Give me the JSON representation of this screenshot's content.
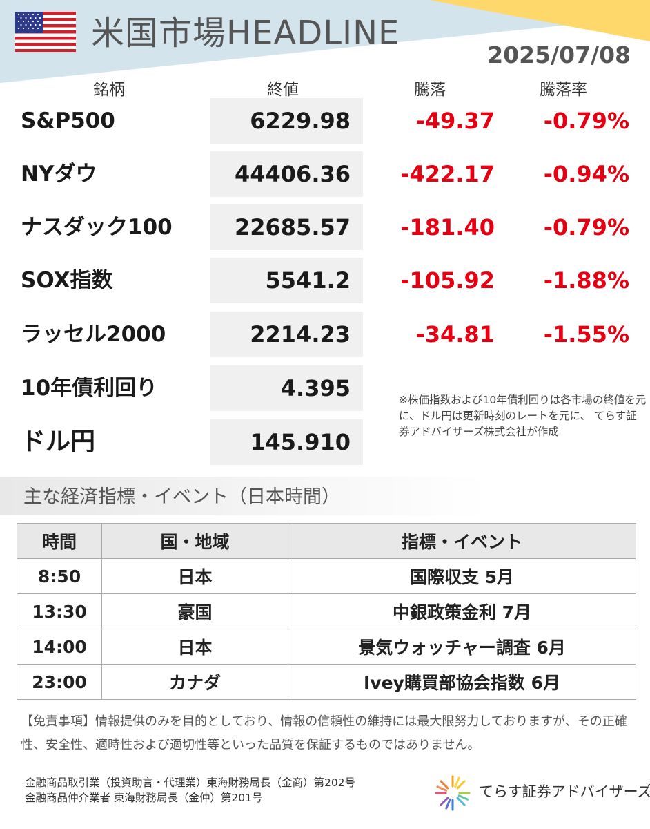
{
  "header": {
    "title": "米国市場HEADLINE",
    "date": "2025/07/08"
  },
  "market": {
    "columns": [
      "銘柄",
      "終値",
      "騰落",
      "騰落率"
    ],
    "rows": [
      {
        "name": "S&P500",
        "close": "6229.98",
        "change": "-49.37",
        "pct": "-0.79%"
      },
      {
        "name": "NYダウ",
        "close": "44406.36",
        "change": "-422.17",
        "pct": "-0.94%"
      },
      {
        "name": "ナスダック100",
        "close": "22685.57",
        "change": "-181.40",
        "pct": "-0.79%"
      },
      {
        "name": "SOX指数",
        "close": "5541.2",
        "change": "-105.92",
        "pct": "-1.88%"
      },
      {
        "name": "ラッセル2000",
        "close": "2214.23",
        "change": "-34.81",
        "pct": "-1.55%"
      },
      {
        "name": "10年債利回り",
        "close": "4.395"
      },
      {
        "name": "ドル円",
        "close": "145.910"
      }
    ],
    "note": "※株価指数および10年債利回りは各市場の終値を元に、ドル円は更新時刻のレートを元に、 てらす証券アドバイザーズ株式会社が作成",
    "negative_color": "#e60012"
  },
  "events": {
    "section_title": "主な経済指標・イベント（日本時間）",
    "columns": [
      "時間",
      "国・地域",
      "指標・イベント"
    ],
    "rows": [
      {
        "time": "8:50",
        "region": "日本",
        "event": "国際収支 5月"
      },
      {
        "time": "13:30",
        "region": "豪国",
        "event": "中銀政策金利 7月"
      },
      {
        "time": "14:00",
        "region": "日本",
        "event": "景気ウォッチャー調査 6月"
      },
      {
        "time": "23:00",
        "region": "カナダ",
        "event": "Ivey購買部協会指数 6月"
      }
    ]
  },
  "footer": {
    "disclaimer": "【免責事項】情報提供のみを目的としており、情報の信頼性の維持には最大限努力しておりますが、その正確性、安全性、適時性および適切性等といった品質を保証するものではありません。",
    "license_1": "金融商品取引業（投資助言・代理業）東海財務局長（金商）第202号",
    "license_2": "金融商品仲介業者 東海財務局長（金仲）第201号",
    "company": "てらす証券アドバイザーズ",
    "logo_icon": "sunburst-logo-icon",
    "flag_icon": "us-flag-icon"
  }
}
